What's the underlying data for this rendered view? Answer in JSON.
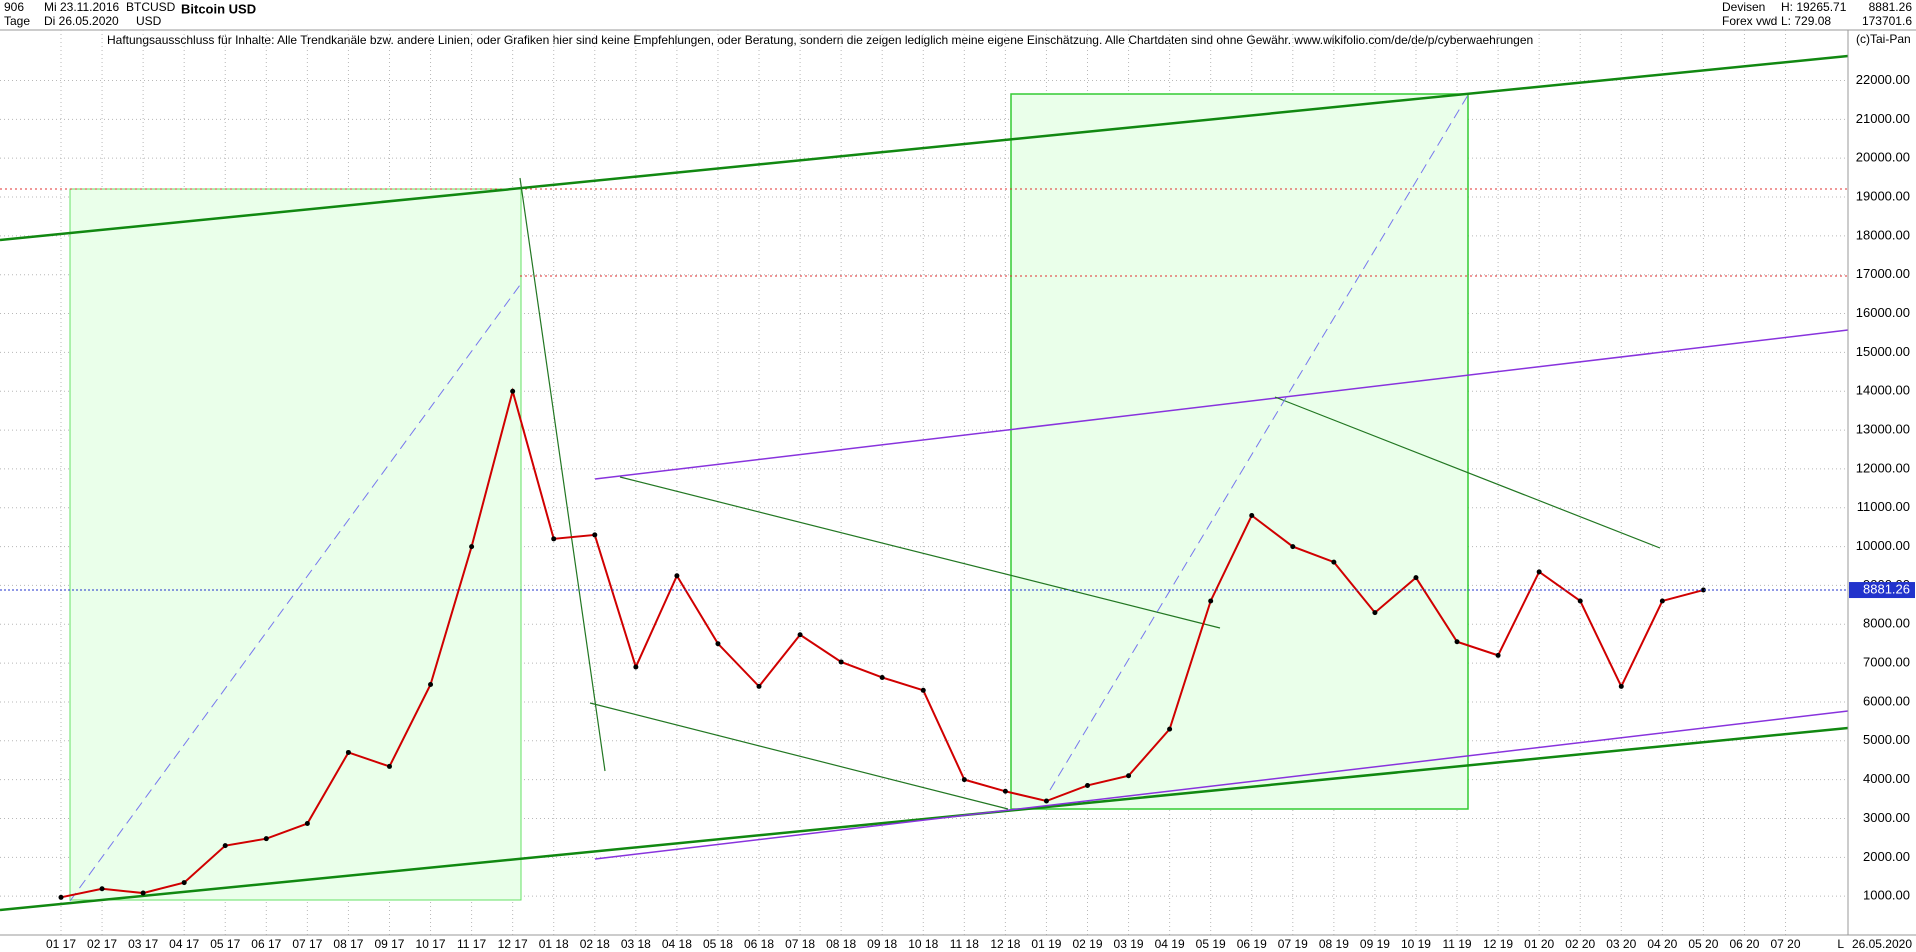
{
  "header": {
    "count": "906",
    "date_from": "Mi 23.11.2016",
    "symbol": "BTCUSD",
    "title": "Bitcoin USD",
    "period": "Tage",
    "date_to": "Di 26.05.2020",
    "currency": "USD",
    "category": "Devisen",
    "source": "Forex vwd",
    "high": "H: 19265.71",
    "low": "L: 729.08",
    "volume": "173701.6",
    "copyright": "(c)Tai-Pan",
    "disclaimer": "Haftungsausschluss für Inhalte: Alle Trendkanäle bzw. andere Linien, oder Grafiken hier sind keine Empfehlungen, oder Beratung, sondern die zeigen lediglich meine eigene Einschätzung. Alle Chartdaten sind ohne Gewähr.  www.wikifolio.com/de/de/p/cyberwaehrungen"
  },
  "chart_data": {
    "type": "line",
    "color": "#d00000",
    "last": 8881.26,
    "last_date": "26.05.2020",
    "scale_mode": "L",
    "categories": [
      "01 17",
      "02 17",
      "03 17",
      "04 17",
      "05 17",
      "06 17",
      "07 17",
      "08 17",
      "09 17",
      "10 17",
      "11 17",
      "12 17",
      "01 18",
      "02 18",
      "03 18",
      "04 18",
      "05 18",
      "06 18",
      "07 18",
      "08 18",
      "09 18",
      "10 18",
      "11 18",
      "12 18",
      "01 19",
      "02 19",
      "03 19",
      "04 19",
      "05 19",
      "06 19",
      "07 19",
      "08 19",
      "09 19",
      "10 19",
      "11 19",
      "12 19",
      "01 20",
      "02 20",
      "03 20",
      "04 20",
      "05 20",
      "06 20",
      "07 20"
    ],
    "values": [
      970,
      1190,
      1080,
      1350,
      2300,
      2480,
      2870,
      4700,
      4340,
      6450,
      10000,
      14000,
      10200,
      10300,
      6900,
      9250,
      7500,
      6400,
      7730,
      7030,
      6630,
      6300,
      4000,
      3700,
      3450,
      3850,
      4100,
      5300,
      8600,
      10800,
      10000,
      9600,
      8300,
      9200,
      7550,
      7200,
      9350,
      8600,
      6400,
      8600,
      8881.26,
      null,
      null
    ],
    "ylim": [
      0,
      23300
    ],
    "yticks": [
      {
        "value": 1000,
        "label": "1000.00"
      },
      {
        "value": 2000,
        "label": "2000.00"
      },
      {
        "value": 3000,
        "label": "3000.00"
      },
      {
        "value": 4000,
        "label": "4000.00"
      },
      {
        "value": 5000,
        "label": "5000.00"
      },
      {
        "value": 6000,
        "label": "6000.00"
      },
      {
        "value": 7000,
        "label": "7000.00"
      },
      {
        "value": 8000,
        "label": "8000.00"
      },
      {
        "value": 9000,
        "label": "9000.00"
      },
      {
        "value": 10000,
        "label": "10000.00"
      },
      {
        "value": 11000,
        "label": "11000.00"
      },
      {
        "value": 12000,
        "label": "12000.00"
      },
      {
        "value": 13000,
        "label": "13000.00"
      },
      {
        "value": 14000,
        "label": "14000.00"
      },
      {
        "value": 15000,
        "label": "15000.00"
      },
      {
        "value": 16000,
        "label": "16000.00"
      },
      {
        "value": 17000,
        "label": "17000.00"
      },
      {
        "value": 18000,
        "label": "18000.00"
      },
      {
        "value": 19000,
        "label": "19000.00"
      },
      {
        "value": 20000,
        "label": "20000.00"
      },
      {
        "value": 21000,
        "label": "21000.00"
      },
      {
        "value": 22000,
        "label": "22000.00"
      }
    ],
    "grid": true
  }
}
